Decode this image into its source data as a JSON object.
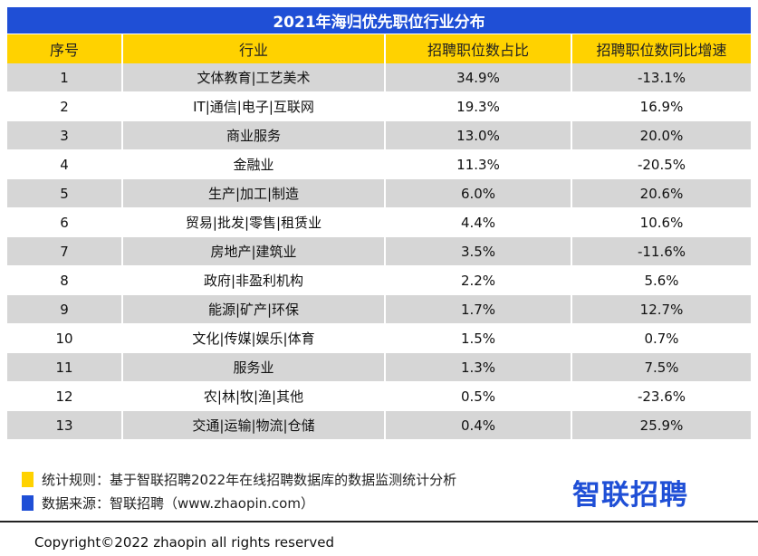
{
  "title": "2021年海归优先职位行业分布",
  "headers": [
    "序号",
    "行业",
    "招聘职位数占比",
    "招聘职位数同比增速"
  ],
  "rows": [
    [
      "1",
      "文体教育|工艺美术",
      "34.9%",
      "-13.1%"
    ],
    [
      "2",
      "IT|通信|电子|互联网",
      "19.3%",
      "16.9%"
    ],
    [
      "3",
      "商业服务",
      "13.0%",
      "20.0%"
    ],
    [
      "4",
      "金融业",
      "11.3%",
      "-20.5%"
    ],
    [
      "5",
      "生产|加工|制造",
      "6.0%",
      "20.6%"
    ],
    [
      "6",
      "贸易|批发|零售|租赁业",
      "4.4%",
      "10.6%"
    ],
    [
      "7",
      "房地产|建筑业",
      "3.5%",
      "-11.6%"
    ],
    [
      "8",
      "政府|非盈利机构",
      "2.2%",
      "5.6%"
    ],
    [
      "9",
      "能源|矿产|环保",
      "1.7%",
      "12.7%"
    ],
    [
      "10",
      "文化|传媒|娱乐|体育",
      "1.5%",
      "0.7%"
    ],
    [
      "11",
      "服务业",
      "1.3%",
      "7.5%"
    ],
    [
      "12",
      "农|林|牧|渔|其他",
      "0.5%",
      "-23.6%"
    ],
    [
      "13",
      "交通|运输|物流|仓储",
      "0.4%",
      "25.9%"
    ]
  ],
  "notes": {
    "rule": "统计规则：基于智联招聘2022年在线招聘数据库的数据监测统计分析",
    "source": "数据来源：智联招聘（www.zhaopin.com）"
  },
  "logo": "智联招聘",
  "copyright": "Copyright©2022 zhaopin all rights reserved",
  "colors": {
    "brand_blue": "#1f4fd6",
    "header_yellow": "#ffd200",
    "stripe_gray": "#d6d6d6"
  }
}
